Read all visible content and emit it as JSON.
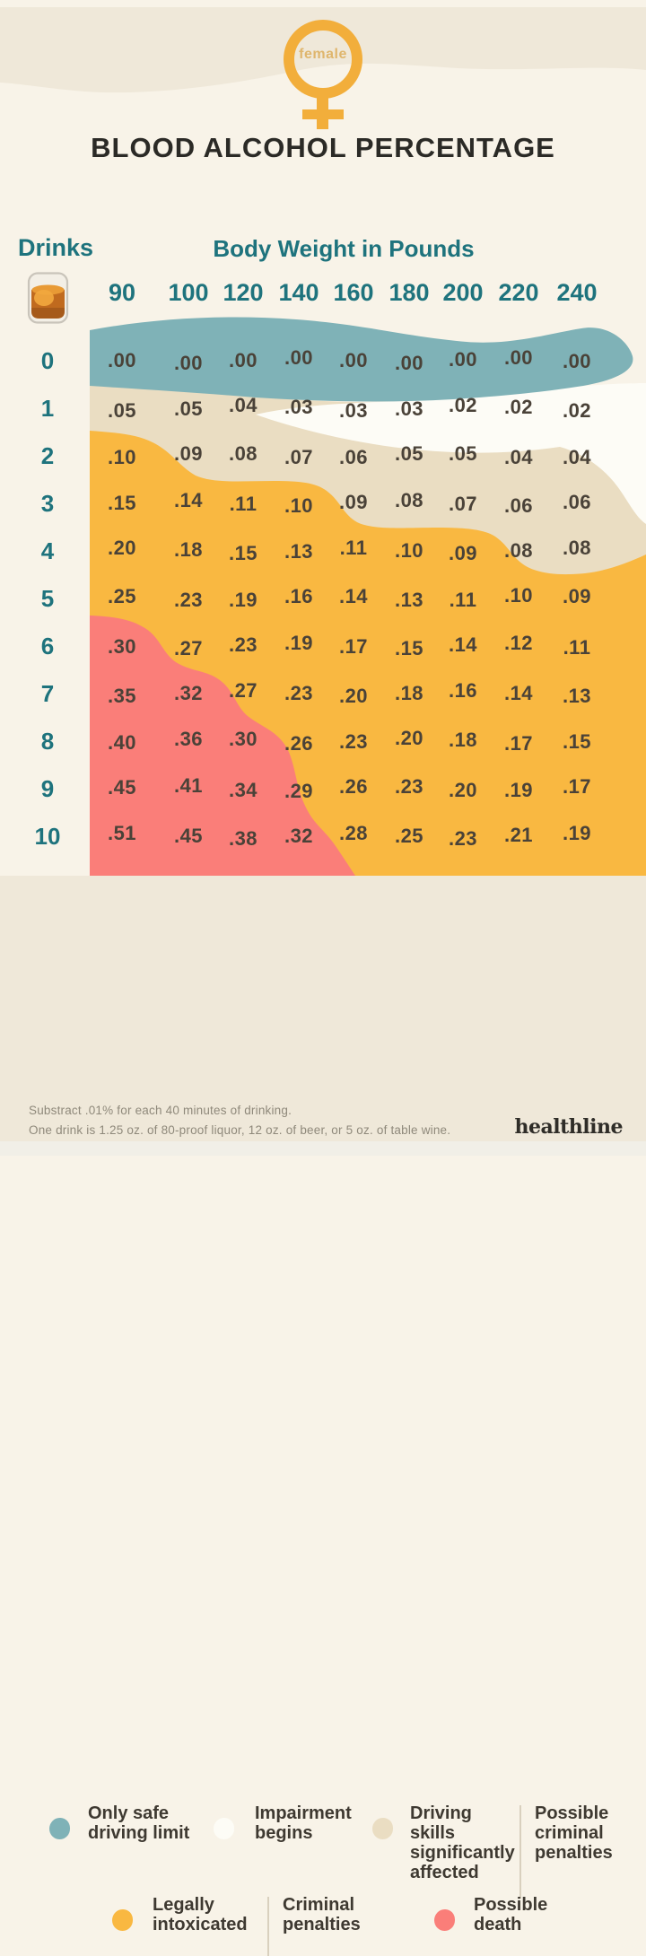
{
  "header": {
    "gender_label": "female",
    "title": "BLOOD ALCOHOL PERCENTAGE"
  },
  "table": {
    "drinks_label": "Drinks",
    "weights_label": "Body Weight in Pounds",
    "drink_icon": "tumbler-glass-icon",
    "weights": [
      "90",
      "100",
      "120",
      "140",
      "160",
      "180",
      "200",
      "220",
      "240"
    ],
    "rows": [
      {
        "drinks": "0",
        "values": [
          ".00",
          ".00",
          ".00",
          ".00",
          ".00",
          ".00",
          ".00",
          ".00",
          ".00"
        ]
      },
      {
        "drinks": "1",
        "values": [
          ".05",
          ".05",
          ".04",
          ".03",
          ".03",
          ".03",
          ".02",
          ".02",
          ".02"
        ]
      },
      {
        "drinks": "2",
        "values": [
          ".10",
          ".09",
          ".08",
          ".07",
          ".06",
          ".05",
          ".05",
          ".04",
          ".04"
        ]
      },
      {
        "drinks": "3",
        "values": [
          ".15",
          ".14",
          ".11",
          ".10",
          ".09",
          ".08",
          ".07",
          ".06",
          ".06"
        ]
      },
      {
        "drinks": "4",
        "values": [
          ".20",
          ".18",
          ".15",
          ".13",
          ".11",
          ".10",
          ".09",
          ".08",
          ".08"
        ]
      },
      {
        "drinks": "5",
        "values": [
          ".25",
          ".23",
          ".19",
          ".16",
          ".14",
          ".13",
          ".11",
          ".10",
          ".09"
        ]
      },
      {
        "drinks": "6",
        "values": [
          ".30",
          ".27",
          ".23",
          ".19",
          ".17",
          ".15",
          ".14",
          ".12",
          ".11"
        ]
      },
      {
        "drinks": "7",
        "values": [
          ".35",
          ".32",
          ".27",
          ".23",
          ".20",
          ".18",
          ".16",
          ".14",
          ".13"
        ]
      },
      {
        "drinks": "8",
        "values": [
          ".40",
          ".36",
          ".30",
          ".26",
          ".23",
          ".20",
          ".18",
          ".17",
          ".15"
        ]
      },
      {
        "drinks": "9",
        "values": [
          ".45",
          ".41",
          ".34",
          ".29",
          ".26",
          ".23",
          ".20",
          ".19",
          ".17"
        ]
      },
      {
        "drinks": "10",
        "values": [
          ".51",
          ".45",
          ".38",
          ".32",
          ".28",
          ".25",
          ".23",
          ".21",
          ".19"
        ]
      }
    ]
  },
  "legend": {
    "items": [
      {
        "label": "Only safe driving limit",
        "color": "#7FB2B7"
      },
      {
        "label": "Impairment begins",
        "color": "#FDFCF6"
      },
      {
        "label": "Driving skills significantly affected",
        "color": "#EADDC2",
        "extra": "Possible criminal penalties"
      },
      {
        "label": "Legally intoxicated",
        "color": "#F9B841",
        "extra": "Criminal penalties"
      },
      {
        "label": "Possible death",
        "color": "#FA7E79"
      }
    ]
  },
  "footer": {
    "note_line1": "Substract .01% for each 40 minutes of drinking.",
    "note_line2": "One drink is 1.25 oz. of 80-proof liquor, 12 oz. of beer, or 5 oz. of table wine.",
    "brand": "healthline"
  },
  "colors": {
    "background": "#F8F3E8",
    "band": "#EFE8D9",
    "teal_zone": "#7FB2B7",
    "white_zone": "#FDFCF6",
    "tan_zone": "#EADDC2",
    "orange_zone": "#F9B841",
    "red_zone": "#FA7E79",
    "teal_text": "#1E737D",
    "value_text": "#4A4238",
    "symbol_orange": "#F2AE3B"
  },
  "chart_data": {
    "type": "heatmap",
    "title": "BLOOD ALCOHOL PERCENTAGE",
    "subtitle": "female",
    "xlabel": "Body Weight in Pounds",
    "ylabel": "Drinks",
    "columns": [
      90,
      100,
      120,
      140,
      160,
      180,
      200,
      220,
      240
    ],
    "rows": [
      0,
      1,
      2,
      3,
      4,
      5,
      6,
      7,
      8,
      9,
      10
    ],
    "values": [
      [
        0.0,
        0.0,
        0.0,
        0.0,
        0.0,
        0.0,
        0.0,
        0.0,
        0.0
      ],
      [
        0.05,
        0.05,
        0.04,
        0.03,
        0.03,
        0.03,
        0.02,
        0.02,
        0.02
      ],
      [
        0.1,
        0.09,
        0.08,
        0.07,
        0.06,
        0.05,
        0.05,
        0.04,
        0.04
      ],
      [
        0.15,
        0.14,
        0.11,
        0.1,
        0.09,
        0.08,
        0.07,
        0.06,
        0.06
      ],
      [
        0.2,
        0.18,
        0.15,
        0.13,
        0.11,
        0.1,
        0.09,
        0.08,
        0.08
      ],
      [
        0.25,
        0.23,
        0.19,
        0.16,
        0.14,
        0.13,
        0.11,
        0.1,
        0.09
      ],
      [
        0.3,
        0.27,
        0.23,
        0.19,
        0.17,
        0.15,
        0.14,
        0.12,
        0.11
      ],
      [
        0.35,
        0.32,
        0.27,
        0.23,
        0.2,
        0.18,
        0.16,
        0.14,
        0.13
      ],
      [
        0.4,
        0.36,
        0.3,
        0.26,
        0.23,
        0.2,
        0.18,
        0.17,
        0.15
      ],
      [
        0.45,
        0.41,
        0.34,
        0.29,
        0.26,
        0.23,
        0.2,
        0.19,
        0.17
      ],
      [
        0.51,
        0.45,
        0.38,
        0.32,
        0.28,
        0.25,
        0.23,
        0.21,
        0.19
      ]
    ],
    "zone_key": {
      "S": "Only safe driving limit",
      "I": "Impairment begins",
      "D": "Driving skills significantly affected / Possible criminal penalties",
      "L": "Legally intoxicated / Criminal penalties",
      "P": "Possible death"
    },
    "zone_map": [
      [
        "S",
        "S",
        "S",
        "S",
        "S",
        "S",
        "S",
        "S",
        "S"
      ],
      [
        "D",
        "D",
        "D",
        "I",
        "I",
        "I",
        "I",
        "I",
        "I"
      ],
      [
        "L",
        "D",
        "D",
        "D",
        "D",
        "D",
        "D",
        "D",
        "D"
      ],
      [
        "L",
        "L",
        "L",
        "L",
        "D",
        "D",
        "D",
        "D",
        "D"
      ],
      [
        "L",
        "L",
        "L",
        "L",
        "L",
        "L",
        "L",
        "D",
        "D"
      ],
      [
        "L",
        "L",
        "L",
        "L",
        "L",
        "L",
        "L",
        "L",
        "L"
      ],
      [
        "P",
        "L",
        "L",
        "L",
        "L",
        "L",
        "L",
        "L",
        "L"
      ],
      [
        "P",
        "P",
        "L",
        "L",
        "L",
        "L",
        "L",
        "L",
        "L"
      ],
      [
        "P",
        "P",
        "P",
        "L",
        "L",
        "L",
        "L",
        "L",
        "L"
      ],
      [
        "P",
        "P",
        "P",
        "L",
        "L",
        "L",
        "L",
        "L",
        "L"
      ],
      [
        "P",
        "P",
        "P",
        "P",
        "L",
        "L",
        "L",
        "L",
        "L"
      ]
    ],
    "legend_position": "bottom",
    "grid": false
  }
}
